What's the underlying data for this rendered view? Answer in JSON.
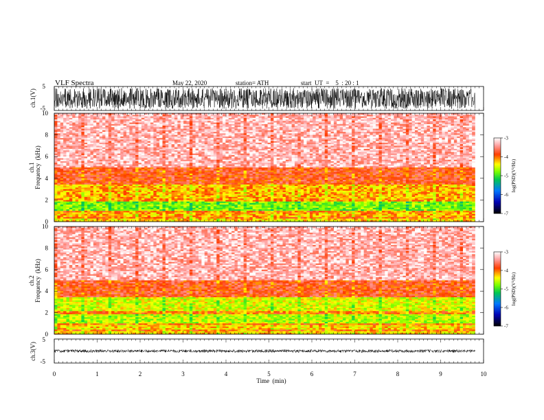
{
  "header": {
    "title": "VLF  Spectra",
    "date": "May 22, 2020",
    "station": "station= ATH",
    "start_ut": "start  UT  =    5  : 20 : 1"
  },
  "chart_data": [
    {
      "id": "ch1-waveform",
      "type": "line",
      "ylabel": "ch.1(V)",
      "ylim": [
        -5,
        5
      ],
      "yticks": [
        "5",
        "-5"
      ],
      "xlim": [
        0,
        10
      ]
    },
    {
      "id": "ch1-spectrogram",
      "type": "heatmap",
      "ylabel_line1": "ch.1",
      "ylabel_line2": "Frequency  (kHz)",
      "ylim": [
        0,
        10
      ],
      "yticks": [
        "0",
        "2",
        "4",
        "6",
        "8",
        "10"
      ],
      "xlim": [
        0,
        10
      ],
      "data_end_min": 9.8,
      "colorbar": {
        "label": "log(PSD)(V²/Hz)",
        "range": [
          -7,
          -3
        ],
        "ticks": [
          "-3",
          "-4",
          "-5",
          "-6",
          "-7"
        ]
      },
      "bands_khz": [
        {
          "from": 0.0,
          "to": 0.3,
          "level": -4.3
        },
        {
          "from": 0.3,
          "to": 0.5,
          "level": -4.0
        },
        {
          "from": 0.5,
          "to": 0.8,
          "level": -4.2
        },
        {
          "from": 0.8,
          "to": 1.0,
          "level": -4.0
        },
        {
          "from": 1.0,
          "to": 1.8,
          "level": -4.8
        },
        {
          "from": 1.8,
          "to": 2.2,
          "level": -4.1
        },
        {
          "from": 2.2,
          "to": 3.5,
          "level": -4.2
        },
        {
          "from": 3.5,
          "to": 5.0,
          "level": -3.8
        },
        {
          "from": 5.0,
          "to": 10.0,
          "level": -3.3
        }
      ]
    },
    {
      "id": "ch2-spectrogram",
      "type": "heatmap",
      "ylabel_line1": "ch.2",
      "ylabel_line2": "Frequency  (kHz)",
      "ylim": [
        0,
        10
      ],
      "yticks": [
        "0",
        "2",
        "4",
        "6",
        "8",
        "10"
      ],
      "xlim": [
        0,
        10
      ],
      "data_end_min": 9.8,
      "colorbar": {
        "label": "log(PSD)(V²/Hz)",
        "range": [
          -7,
          -3
        ],
        "ticks": [
          "-3",
          "-4",
          "-5",
          "-6",
          "-7"
        ]
      },
      "bands_khz": [
        {
          "from": 0.0,
          "to": 0.3,
          "level": -4.3
        },
        {
          "from": 0.3,
          "to": 0.5,
          "level": -4.0
        },
        {
          "from": 0.5,
          "to": 0.8,
          "level": -4.3
        },
        {
          "from": 0.8,
          "to": 1.0,
          "level": -4.0
        },
        {
          "from": 1.0,
          "to": 1.8,
          "level": -4.6
        },
        {
          "from": 1.8,
          "to": 2.2,
          "level": -4.0
        },
        {
          "from": 2.2,
          "to": 3.5,
          "level": -4.5
        },
        {
          "from": 3.5,
          "to": 5.0,
          "level": -3.8
        },
        {
          "from": 5.0,
          "to": 10.0,
          "level": -3.3
        }
      ]
    },
    {
      "id": "ch3-waveform",
      "type": "line",
      "ylabel": "ch.3(V)",
      "ylim": [
        -5,
        5
      ],
      "yticks": [
        "5",
        "-5"
      ],
      "xlim": [
        0,
        10
      ],
      "xlabel": "Time  (min)",
      "xticks": [
        "0",
        "1",
        "2",
        "3",
        "4",
        "5",
        "6",
        "7",
        "8",
        "9",
        "10"
      ]
    }
  ]
}
